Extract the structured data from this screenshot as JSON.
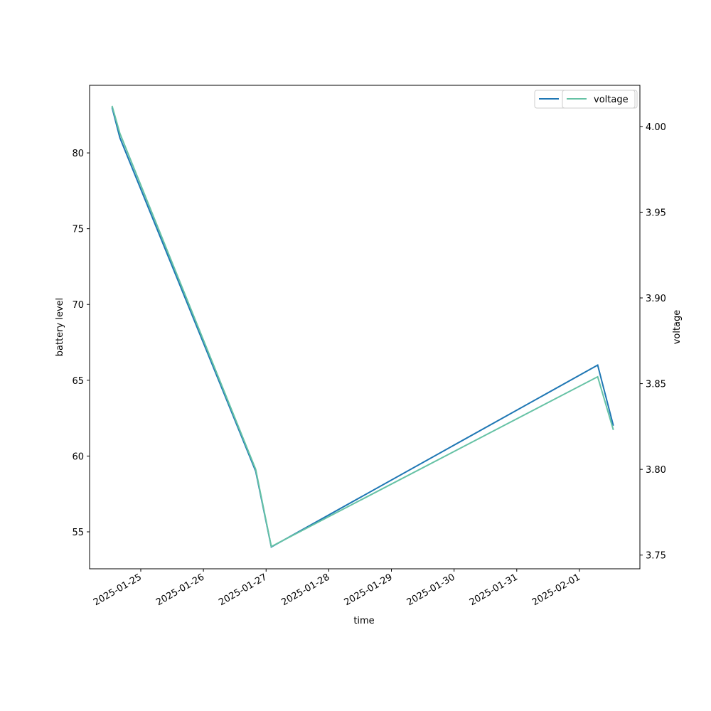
{
  "chart_data": {
    "type": "line",
    "x_label": "time",
    "y_label": "battery level",
    "y2_label": "voltage",
    "x": [
      "2025-01-24T13:00",
      "2025-01-24T16:00",
      "2025-01-26T20:00",
      "2025-01-27T02:00",
      "2025-02-01T07:00",
      "2025-02-01T13:00"
    ],
    "series": [
      {
        "name": "battery level",
        "color": "#1f77b4",
        "values": [
          83,
          81,
          59,
          54,
          66,
          62
        ]
      },
      {
        "name": "voltage",
        "color": "#66c2a5",
        "axis": "y2",
        "values": [
          4.012,
          3.996,
          3.8,
          3.755,
          3.854,
          3.823
        ]
      }
    ],
    "xlim": [
      "2025-01-24T04:24",
      "2025-02-01T23:10"
    ],
    "xticks": [
      "2025-01-25",
      "2025-01-26",
      "2025-01-27",
      "2025-01-28",
      "2025-01-29",
      "2025-01-30",
      "2025-01-31",
      "2025-02-01"
    ],
    "ylim": [
      52.56,
      84.46
    ],
    "yticks": [
      55,
      60,
      65,
      70,
      75,
      80
    ],
    "y2lim": [
      3.742,
      4.024
    ],
    "y2ticks": [
      3.75,
      {
        "value": 3.8,
        "label": "3.80"
      },
      3.85,
      {
        "value": 3.9,
        "label": "3.90"
      },
      3.95,
      {
        "value": 4.0,
        "label": "4.00"
      }
    ],
    "grid": false,
    "legend": "upper right"
  }
}
